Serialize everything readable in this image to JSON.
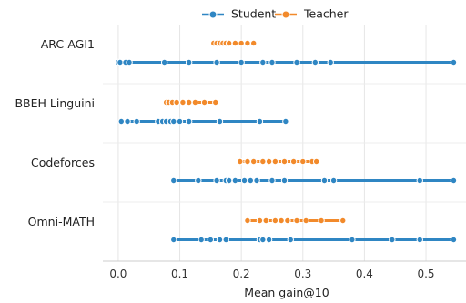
{
  "chart_data": {
    "type": "scatter",
    "title": "",
    "xlabel": "Mean gain@10",
    "ylabel": "",
    "xlim": [
      -0.025,
      0.565
    ],
    "xticks": [
      "0.0",
      "0.1",
      "0.2",
      "0.3",
      "0.4",
      "0.5"
    ],
    "xtick_values": [
      0.0,
      0.1,
      0.2,
      0.3,
      0.4,
      0.5
    ],
    "grid": true,
    "legend_position": "top-center",
    "categories": [
      "ARC-AGI1",
      "BBEH Linguini",
      "Codeforces",
      "Omni-MATH"
    ],
    "series": [
      {
        "name": "Student",
        "color": "#2f86c3",
        "data": [
          [
            0.0,
            0.003,
            0.012,
            0.018,
            0.075,
            0.115,
            0.16,
            0.2,
            0.235,
            0.25,
            0.29,
            0.32,
            0.345,
            0.545
          ],
          [
            0.005,
            0.015,
            0.03,
            0.065,
            0.072,
            0.078,
            0.085,
            0.09,
            0.1,
            0.115,
            0.165,
            0.23,
            0.272
          ],
          [
            0.09,
            0.13,
            0.16,
            0.175,
            0.18,
            0.19,
            0.205,
            0.215,
            0.225,
            0.25,
            0.27,
            0.335,
            0.35,
            0.49,
            0.545
          ],
          [
            0.09,
            0.135,
            0.15,
            0.165,
            0.175,
            0.23,
            0.235,
            0.245,
            0.28,
            0.38,
            0.445,
            0.49,
            0.545
          ]
        ]
      },
      {
        "name": "Teacher",
        "color": "#f28a2b",
        "data": [
          [
            0.155,
            0.16,
            0.165,
            0.17,
            0.175,
            0.18,
            0.19,
            0.2,
            0.21,
            0.22
          ],
          [
            0.078,
            0.082,
            0.088,
            0.095,
            0.105,
            0.115,
            0.125,
            0.14,
            0.158
          ],
          [
            0.198,
            0.21,
            0.22,
            0.235,
            0.245,
            0.255,
            0.27,
            0.285,
            0.3,
            0.315,
            0.322
          ],
          [
            0.21,
            0.23,
            0.24,
            0.255,
            0.265,
            0.275,
            0.29,
            0.305,
            0.33,
            0.365
          ]
        ]
      }
    ]
  }
}
